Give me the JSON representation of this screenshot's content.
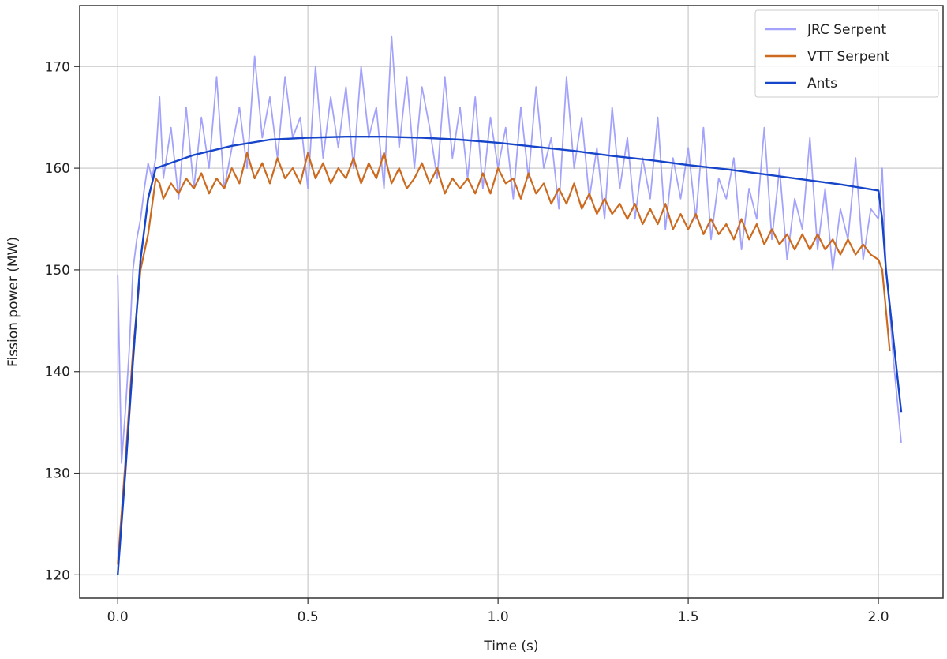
{
  "chart_data": {
    "type": "line",
    "xlabel": "Time (s)",
    "ylabel": "Fission power (MW)",
    "xlim": [
      -0.1,
      2.17
    ],
    "ylim": [
      117.7,
      176.0
    ],
    "xticks": [
      0.0,
      0.5,
      1.0,
      1.5,
      2.0
    ],
    "xtick_labels": [
      "0.0",
      "0.5",
      "1.0",
      "1.5",
      "2.0"
    ],
    "yticks": [
      120,
      130,
      140,
      150,
      160,
      170
    ],
    "ytick_labels": [
      "120",
      "130",
      "140",
      "150",
      "160",
      "170"
    ],
    "grid": true,
    "legend": "top-right",
    "series": [
      {
        "name": "JRC Serpent",
        "color": "#a3a3fc",
        "x": [
          0.0,
          0.01,
          0.02,
          0.03,
          0.04,
          0.05,
          0.06,
          0.07,
          0.08,
          0.09,
          0.1,
          0.11,
          0.12,
          0.14,
          0.16,
          0.18,
          0.2,
          0.22,
          0.24,
          0.26,
          0.28,
          0.3,
          0.32,
          0.34,
          0.36,
          0.38,
          0.4,
          0.42,
          0.44,
          0.46,
          0.48,
          0.5,
          0.52,
          0.54,
          0.56,
          0.58,
          0.6,
          0.62,
          0.64,
          0.66,
          0.68,
          0.7,
          0.72,
          0.74,
          0.76,
          0.78,
          0.8,
          0.82,
          0.84,
          0.86,
          0.88,
          0.9,
          0.92,
          0.94,
          0.96,
          0.98,
          1.0,
          1.02,
          1.04,
          1.06,
          1.08,
          1.1,
          1.12,
          1.14,
          1.16,
          1.18,
          1.2,
          1.22,
          1.24,
          1.26,
          1.28,
          1.3,
          1.32,
          1.34,
          1.36,
          1.38,
          1.4,
          1.42,
          1.44,
          1.46,
          1.48,
          1.5,
          1.52,
          1.54,
          1.56,
          1.58,
          1.6,
          1.62,
          1.64,
          1.66,
          1.68,
          1.7,
          1.72,
          1.74,
          1.76,
          1.78,
          1.8,
          1.82,
          1.84,
          1.86,
          1.88,
          1.9,
          1.92,
          1.94,
          1.96,
          1.98,
          2.0,
          2.01,
          2.02,
          2.03,
          2.04,
          2.05,
          2.06
        ],
        "values": [
          149.5,
          131,
          136,
          142,
          150,
          153,
          155,
          158,
          160.5,
          159,
          161,
          167,
          159,
          164,
          157,
          166,
          158,
          165,
          160,
          169,
          158,
          162,
          166,
          160,
          171,
          163,
          167,
          161,
          169,
          163,
          165,
          158,
          170,
          161,
          167,
          162,
          168,
          160,
          170,
          163,
          166,
          158,
          173,
          162,
          169,
          160,
          168,
          164,
          159,
          169,
          161,
          166,
          159,
          167,
          158,
          165,
          160,
          164,
          157,
          166,
          159,
          168,
          160,
          163,
          156,
          169,
          160,
          165,
          157,
          162,
          155,
          166,
          158,
          163,
          155,
          161,
          157,
          165,
          154,
          161,
          157,
          162,
          155,
          164,
          153,
          159,
          157,
          161,
          152,
          158,
          155,
          164,
          153,
          160,
          151,
          157,
          154,
          163,
          152,
          158,
          150,
          156,
          153,
          161,
          151,
          156,
          155,
          160,
          150,
          146,
          141,
          137,
          133
        ]
      },
      {
        "name": "VTT Serpent",
        "color": "#cc6a1f",
        "x": [
          0.0,
          0.02,
          0.04,
          0.06,
          0.08,
          0.1,
          0.11,
          0.12,
          0.14,
          0.16,
          0.18,
          0.2,
          0.22,
          0.24,
          0.26,
          0.28,
          0.3,
          0.32,
          0.34,
          0.36,
          0.38,
          0.4,
          0.42,
          0.44,
          0.46,
          0.48,
          0.5,
          0.52,
          0.54,
          0.56,
          0.58,
          0.6,
          0.62,
          0.64,
          0.66,
          0.68,
          0.7,
          0.72,
          0.74,
          0.76,
          0.78,
          0.8,
          0.82,
          0.84,
          0.86,
          0.88,
          0.9,
          0.92,
          0.94,
          0.96,
          0.98,
          1.0,
          1.02,
          1.04,
          1.06,
          1.08,
          1.1,
          1.12,
          1.14,
          1.16,
          1.18,
          1.2,
          1.22,
          1.24,
          1.26,
          1.28,
          1.3,
          1.32,
          1.34,
          1.36,
          1.38,
          1.4,
          1.42,
          1.44,
          1.46,
          1.48,
          1.5,
          1.52,
          1.54,
          1.56,
          1.58,
          1.6,
          1.62,
          1.64,
          1.66,
          1.68,
          1.7,
          1.72,
          1.74,
          1.76,
          1.78,
          1.8,
          1.82,
          1.84,
          1.86,
          1.88,
          1.9,
          1.92,
          1.94,
          1.96,
          1.98,
          2.0,
          2.01,
          2.02,
          2.03
        ],
        "values": [
          121,
          131,
          142,
          150,
          153.5,
          159,
          158.5,
          157,
          158.5,
          157.5,
          159,
          158,
          159.5,
          157.5,
          159,
          158,
          160,
          158.5,
          161.5,
          159,
          160.5,
          158.5,
          161,
          159,
          160,
          158.5,
          161.5,
          159,
          160.5,
          158.5,
          160,
          159,
          161,
          158.5,
          160.5,
          159,
          161.5,
          158.5,
          160,
          158,
          159,
          160.5,
          158.5,
          160,
          157.5,
          159,
          158,
          159,
          157.5,
          159.5,
          157.5,
          160,
          158.5,
          159,
          157,
          159.5,
          157.5,
          158.5,
          156.5,
          158,
          156.5,
          158.5,
          156,
          157.5,
          155.5,
          157,
          155.5,
          156.5,
          155,
          156.5,
          154.5,
          156,
          154.5,
          156.5,
          154,
          155.5,
          154,
          155.5,
          153.5,
          155,
          153.5,
          154.5,
          153,
          155,
          153,
          154.5,
          152.5,
          154,
          152.5,
          153.5,
          152,
          153.5,
          152,
          153.5,
          152,
          153,
          151.5,
          153,
          151.5,
          152.5,
          151.5,
          151,
          150,
          146,
          142
        ]
      },
      {
        "name": "Ants",
        "color": "#1645c9",
        "x": [
          0.0,
          0.02,
          0.04,
          0.06,
          0.08,
          0.1,
          0.2,
          0.3,
          0.4,
          0.5,
          0.6,
          0.7,
          0.8,
          0.9,
          1.0,
          1.1,
          1.2,
          1.3,
          1.4,
          1.5,
          1.6,
          1.7,
          1.8,
          1.9,
          2.0,
          2.01,
          2.02,
          2.04,
          2.06
        ],
        "values": [
          120,
          130,
          141,
          151,
          157,
          160,
          161.3,
          162.2,
          162.8,
          163,
          163.1,
          163.1,
          163,
          162.8,
          162.5,
          162.1,
          161.7,
          161.2,
          160.8,
          160.3,
          159.9,
          159.4,
          158.9,
          158.4,
          157.8,
          155,
          150,
          143,
          136
        ]
      }
    ]
  }
}
